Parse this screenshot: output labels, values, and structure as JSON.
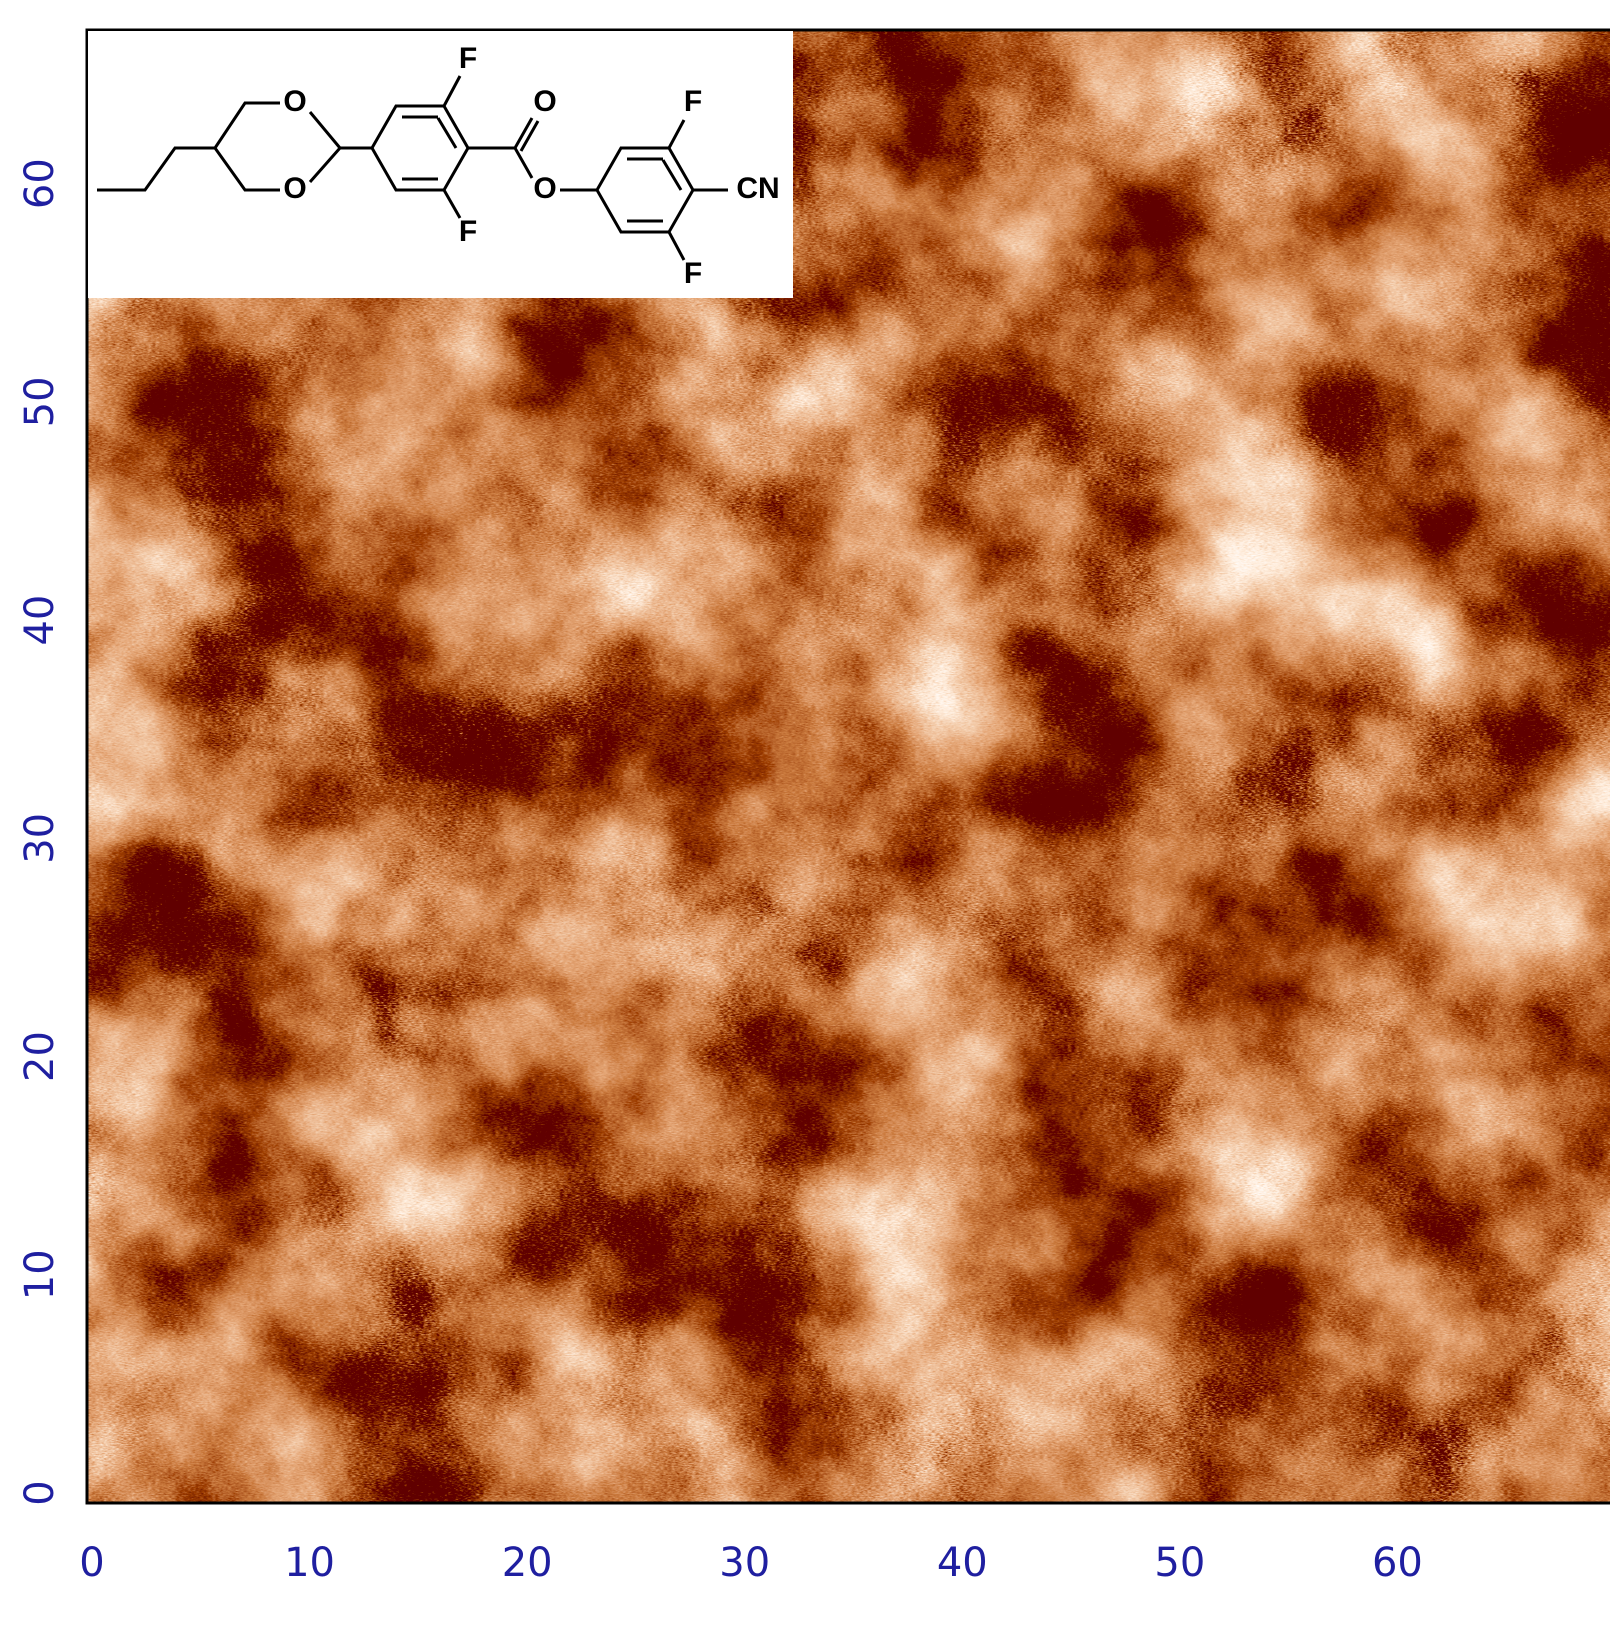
{
  "chart_data": {
    "type": "image",
    "xlim": [
      0,
      70
    ],
    "ylim": [
      0,
      67.5
    ],
    "xticks": [
      0,
      10,
      20,
      30,
      40,
      50,
      60
    ],
    "yticks": [
      0,
      10,
      20,
      30,
      40,
      50,
      60
    ],
    "tick_color": "#1f1fa0",
    "annotations": [
      "O",
      "O",
      "F",
      "O",
      "O",
      "F",
      "F",
      "CN",
      "F"
    ]
  }
}
